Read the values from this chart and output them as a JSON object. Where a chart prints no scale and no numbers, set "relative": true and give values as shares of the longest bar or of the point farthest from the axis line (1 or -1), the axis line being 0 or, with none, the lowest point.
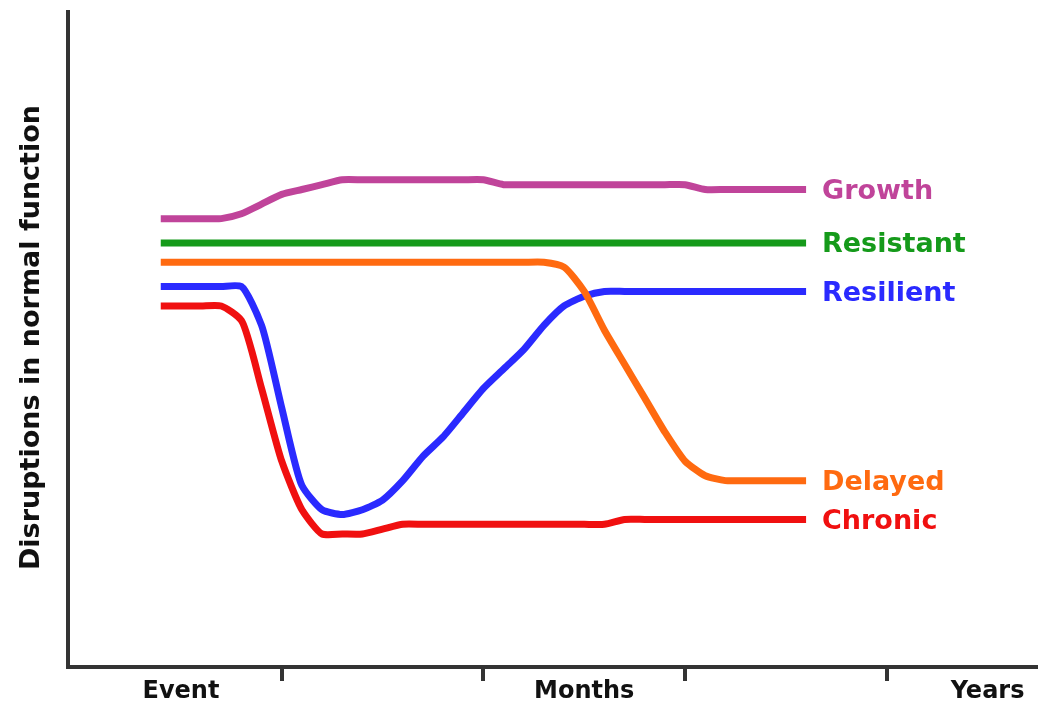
{
  "chart_data": {
    "type": "line",
    "relative": true,
    "ylabel": "Disruptions in normal function",
    "categories": [
      null,
      null,
      null,
      null,
      null,
      "Event",
      null,
      null,
      null,
      null,
      null,
      null,
      null,
      null,
      null,
      null,
      null,
      null,
      null,
      null,
      null,
      null,
      null,
      null,
      null,
      "Months",
      null,
      null,
      null,
      null,
      null,
      null,
      null,
      null,
      null,
      null,
      null,
      null,
      null,
      null,
      null,
      null,
      null,
      null,
      null,
      "Years",
      null,
      null
    ],
    "legend": false,
    "marker": "none",
    "line_style": "solid",
    "series": [
      {
        "name": "Growth",
        "color": "#c0449a",
        "values": [
          null,
          null,
          null,
          null,
          0.92,
          0.92,
          0.92,
          0.92,
          0.93,
          0.95,
          0.97,
          0.98,
          0.99,
          1.0,
          1.0,
          1.0,
          1.0,
          1.0,
          1.0,
          1.0,
          1.0,
          0.99,
          0.99,
          0.99,
          0.99,
          0.99,
          0.99,
          0.99,
          0.99,
          0.99,
          0.99,
          0.98,
          0.98,
          0.98,
          0.98,
          0.98,
          0.98,
          null,
          null,
          null,
          null,
          null,
          null,
          null,
          null,
          null,
          null,
          null
        ]
      },
      {
        "name": "Resistant",
        "color": "#159a1a",
        "values": [
          null,
          null,
          null,
          null,
          0.87,
          0.87,
          0.87,
          0.87,
          0.87,
          0.87,
          0.87,
          0.87,
          0.87,
          0.87,
          0.87,
          0.87,
          0.87,
          0.87,
          0.87,
          0.87,
          0.87,
          0.87,
          0.87,
          0.87,
          0.87,
          0.87,
          0.87,
          0.87,
          0.87,
          0.87,
          0.87,
          0.87,
          0.87,
          0.87,
          0.87,
          0.87,
          0.87,
          null,
          null,
          null,
          null,
          null,
          null,
          null,
          null,
          null,
          null,
          null
        ]
      },
      {
        "name": "Resilient",
        "color": "#2a2aff",
        "values": [
          null,
          null,
          null,
          null,
          0.78,
          0.78,
          0.78,
          0.78,
          0.78,
          0.7,
          0.53,
          0.37,
          0.32,
          0.31,
          0.32,
          0.34,
          0.38,
          0.43,
          0.47,
          0.52,
          0.57,
          0.61,
          0.65,
          0.7,
          0.74,
          0.76,
          0.77,
          0.77,
          0.77,
          0.77,
          0.77,
          0.77,
          0.77,
          0.77,
          0.77,
          0.77,
          0.77,
          null,
          null,
          null,
          null,
          null,
          null,
          null,
          null,
          null,
          null,
          null
        ]
      },
      {
        "name": "Delayed",
        "color": "#ff6a10",
        "values": [
          null,
          null,
          null,
          null,
          0.83,
          0.83,
          0.83,
          0.83,
          0.83,
          0.83,
          0.83,
          0.83,
          0.83,
          0.83,
          0.83,
          0.83,
          0.83,
          0.83,
          0.83,
          0.83,
          0.83,
          0.83,
          0.83,
          0.83,
          0.82,
          0.77,
          0.69,
          0.62,
          0.55,
          0.48,
          0.42,
          0.39,
          0.38,
          0.38,
          0.38,
          0.38,
          0.38,
          null,
          null,
          null,
          null,
          null,
          null,
          null,
          null,
          null,
          null,
          null
        ]
      },
      {
        "name": "Chronic",
        "color": "#f01010",
        "values": [
          null,
          null,
          null,
          null,
          0.74,
          0.74,
          0.74,
          0.74,
          0.71,
          0.57,
          0.42,
          0.32,
          0.27,
          0.27,
          0.27,
          0.28,
          0.29,
          0.29,
          0.29,
          0.29,
          0.29,
          0.29,
          0.29,
          0.29,
          0.29,
          0.29,
          0.29,
          0.3,
          0.3,
          0.3,
          0.3,
          0.3,
          0.3,
          0.3,
          0.3,
          0.3,
          0.3,
          null,
          null,
          null,
          null,
          null,
          null,
          null,
          null,
          null,
          null,
          null
        ]
      }
    ]
  }
}
